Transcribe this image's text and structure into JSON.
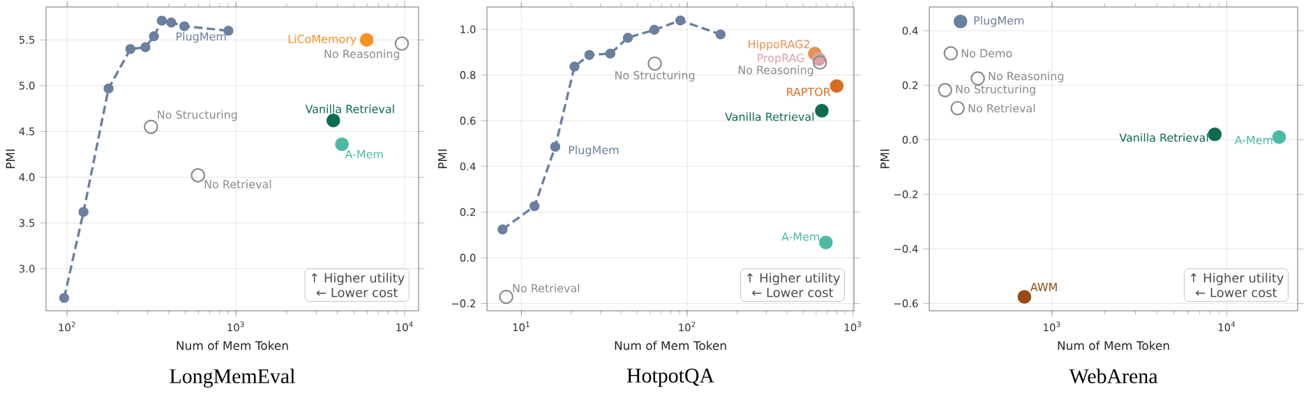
{
  "chart_data": [
    {
      "type": "scatter",
      "title": "LongMemEval",
      "xlabel": "Num of Mem Token",
      "ylabel": "PMI",
      "log": "x",
      "grid": true,
      "xlim": [
        75,
        12100
      ],
      "ylim": [
        2.54,
        5.86
      ],
      "xticks": [
        {
          "value": 100,
          "label": "10$^{2}$"
        },
        {
          "value": 1000,
          "label": "10$^{3}$"
        },
        {
          "value": 10000,
          "label": "10$^{4}$"
        }
      ],
      "yticks": [
        {
          "value": 3,
          "label": "3.0"
        },
        {
          "value": 3.5,
          "label": "3.5"
        },
        {
          "value": 4,
          "label": "4.0"
        },
        {
          "value": 4.5,
          "label": "4.5"
        },
        {
          "value": 5,
          "label": "5.0"
        },
        {
          "value": 5.5,
          "label": "5.5"
        }
      ],
      "annotations": [
        "↑ Higher utility",
        "← Lower cost"
      ],
      "series": [
        {
          "name": "PlugMem",
          "type": "line",
          "line_style": "dashed",
          "marker": "circle",
          "color": "#6b7f9e",
          "x": [
            96,
            125,
            176,
            237,
            291,
            327,
            364,
            414,
            495,
            903
          ],
          "values": [
            2.68,
            3.62,
            4.97,
            5.4,
            5.42,
            5.54,
            5.71,
            5.69,
            5.65,
            5.6
          ]
        },
        {
          "name": "LiCoMemory",
          "marker": "circle",
          "color": "#f39322",
          "x": [
            5960
          ],
          "values": [
            5.5
          ]
        },
        {
          "name": "No Reasoning",
          "marker": "open circle",
          "color": "#8a8a8a",
          "x": [
            9620
          ],
          "values": [
            5.46
          ]
        },
        {
          "name": "Vanilla Retrieval",
          "marker": "circle",
          "color": "#0d6b52",
          "x": [
            3780
          ],
          "values": [
            4.62
          ]
        },
        {
          "name": "A-Mem",
          "marker": "circle",
          "color": "#4dbaa3",
          "x": [
            4250
          ],
          "values": [
            4.36
          ]
        },
        {
          "name": "No Structuring",
          "marker": "open circle",
          "color": "#8a8a8a",
          "x": [
            314
          ],
          "values": [
            4.55
          ]
        },
        {
          "name": "No Retrieval",
          "marker": "open circle",
          "color": "#8a8a8a",
          "x": [
            596
          ],
          "values": [
            4.02
          ]
        }
      ]
    },
    {
      "type": "scatter",
      "title": "HotpotQA",
      "xlabel": "Num of Mem Token",
      "ylabel": "PMI",
      "log": "x",
      "grid": true,
      "xlim": [
        6.2,
        1014
      ],
      "ylim": [
        -0.232,
        1.098
      ],
      "xticks": [
        {
          "value": 10,
          "label": "10$^{1}$"
        },
        {
          "value": 100,
          "label": "10$^{2}$"
        },
        {
          "value": 1000,
          "label": "10$^{3}$"
        }
      ],
      "yticks": [
        {
          "value": -0.2,
          "label": "−0.2"
        },
        {
          "value": 0,
          "label": "0.0"
        },
        {
          "value": 0.2,
          "label": "0.2"
        },
        {
          "value": 0.4,
          "label": "0.4"
        },
        {
          "value": 0.6,
          "label": "0.6"
        },
        {
          "value": 0.8,
          "label": "0.8"
        },
        {
          "value": 1,
          "label": "1.0"
        }
      ],
      "annotations": [
        "↑ Higher utility",
        "← Lower cost"
      ],
      "series": [
        {
          "name": "PlugMem",
          "type": "line",
          "line_style": "dashed",
          "marker": "circle",
          "color": "#6b7f9e",
          "x": [
            7.7,
            12.0,
            16.0,
            20.9,
            25.7,
            34.4,
            43.9,
            63.4,
            91.0,
            159
          ],
          "values": [
            0.124,
            0.226,
            0.486,
            0.837,
            0.888,
            0.894,
            0.963,
            0.998,
            1.039,
            0.978
          ]
        },
        {
          "name": "No Structuring",
          "marker": "open circle",
          "color": "#8a8a8a",
          "x": [
            63.8
          ],
          "values": [
            0.85
          ]
        },
        {
          "name": "No Retrieval",
          "marker": "open circle",
          "color": "#8a8a8a",
          "x": [
            8.1
          ],
          "values": [
            -0.171
          ]
        },
        {
          "name": "HippoRAG2",
          "marker": "circle",
          "color": "#e8914f",
          "x": [
            589
          ],
          "values": [
            0.894
          ]
        },
        {
          "name": "PropRAG",
          "marker": "circle",
          "color": "#dca3a3",
          "x": [
            624
          ],
          "values": [
            0.87
          ]
        },
        {
          "name": "No Reasoning",
          "marker": "open circle",
          "color": "#8a8a8a",
          "x": [
            632
          ],
          "values": [
            0.855
          ]
        },
        {
          "name": "RAPTOR",
          "marker": "circle",
          "color": "#d86d1f",
          "x": [
            798
          ],
          "values": [
            0.752
          ]
        },
        {
          "name": "Vanilla Retrieval",
          "marker": "circle",
          "color": "#0d6b52",
          "x": [
            649
          ],
          "values": [
            0.644
          ]
        },
        {
          "name": "A-Mem",
          "marker": "circle",
          "color": "#4dbaa3",
          "x": [
            687
          ],
          "values": [
            0.067
          ]
        }
      ]
    },
    {
      "type": "scatter",
      "title": "WebArena",
      "xlabel": "Num of Mem Token",
      "ylabel": "PMI",
      "log": "x",
      "grid": true,
      "xlim": [
        199,
        25400
      ],
      "ylim": [
        -0.627,
        0.487
      ],
      "xticks": [
        {
          "value": 1000,
          "label": "10$^{3}$"
        },
        {
          "value": 10000,
          "label": "10$^{4}$"
        }
      ],
      "yticks": [
        {
          "value": -0.6,
          "label": "−0.6"
        },
        {
          "value": -0.4,
          "label": "−0.4"
        },
        {
          "value": -0.2,
          "label": "−0.2"
        },
        {
          "value": 0,
          "label": "0.0"
        },
        {
          "value": 0.2,
          "label": "0.2"
        },
        {
          "value": 0.4,
          "label": "0.4"
        }
      ],
      "annotations": [
        "↑ Higher utility",
        "← Lower cost"
      ],
      "series": [
        {
          "name": "PlugMem",
          "marker": "circle",
          "color": "#6b7f9e",
          "x": [
            300
          ],
          "values": [
            0.434
          ]
        },
        {
          "name": "No Demo",
          "marker": "open circle",
          "color": "#8a8a8a",
          "x": [
            264
          ],
          "values": [
            0.317
          ]
        },
        {
          "name": "No Reasoning",
          "marker": "open circle",
          "color": "#8a8a8a",
          "x": [
            377
          ],
          "values": [
            0.225
          ]
        },
        {
          "name": "No Structuring",
          "marker": "open circle",
          "color": "#8a8a8a",
          "x": [
            245
          ],
          "values": [
            0.182
          ]
        },
        {
          "name": "No Retrieval",
          "marker": "open circle",
          "color": "#8a8a8a",
          "x": [
            289
          ],
          "values": [
            0.116
          ]
        },
        {
          "name": "Vanilla Retrieval",
          "marker": "circle",
          "color": "#0d6b52",
          "x": [
            8530
          ],
          "values": [
            0.02
          ]
        },
        {
          "name": "A-Mem",
          "marker": "circle",
          "color": "#4dbaa3",
          "x": [
            19900
          ],
          "values": [
            0.01
          ]
        },
        {
          "name": "AWM",
          "marker": "circle",
          "color": "#9a4a14",
          "x": [
            696
          ],
          "values": [
            -0.576
          ]
        }
      ]
    }
  ]
}
